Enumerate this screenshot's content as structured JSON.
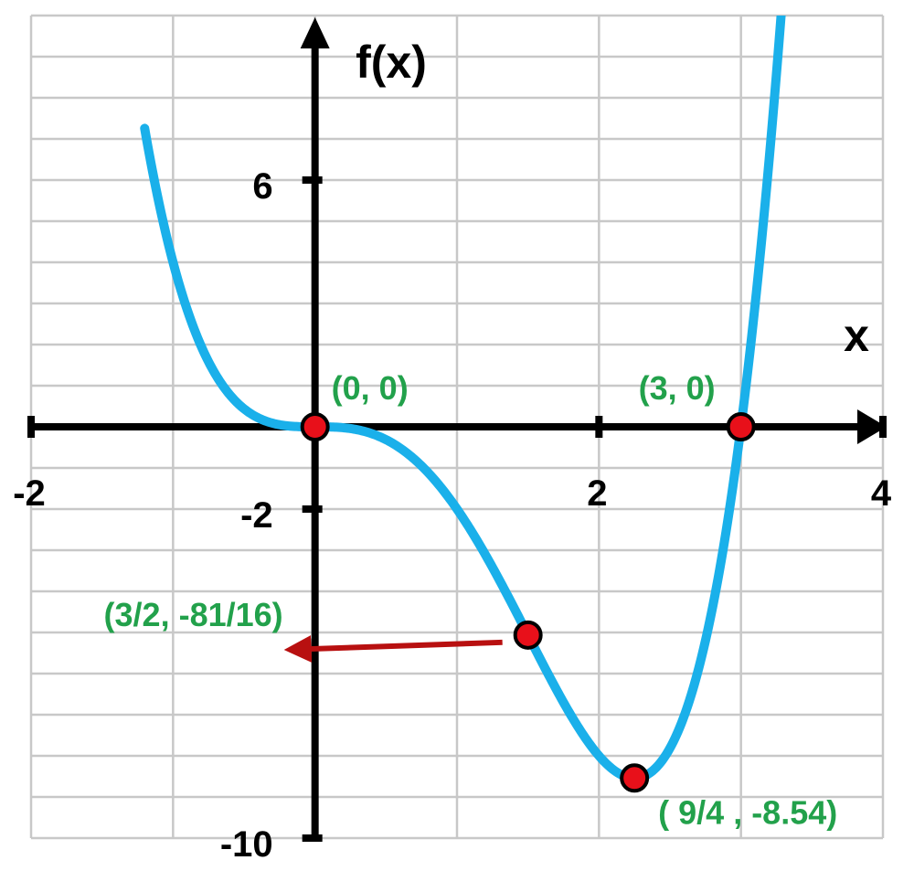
{
  "chart_data": {
    "type": "line",
    "xlabel": "x",
    "ylabel": "f(x)",
    "xlim": [
      -2,
      4
    ],
    "ylim": [
      -10,
      10
    ],
    "x_ticks": [
      {
        "value": -2,
        "label": "-2"
      },
      {
        "value": 2,
        "label": "2"
      },
      {
        "value": 4,
        "label": "4"
      }
    ],
    "y_ticks": [
      {
        "value": 6,
        "label": "6"
      },
      {
        "value": -2,
        "label": "-2"
      },
      {
        "value": -10,
        "label": "-10"
      }
    ],
    "grid": true,
    "grid_step": {
      "x": 1,
      "y": 1
    },
    "series": [
      {
        "function": "x^4 - 3x^3",
        "color": "#1ab0ea",
        "x": [
          -1.2,
          -1.1,
          -1.0,
          -0.9,
          -0.8,
          -0.6,
          -0.4,
          -0.2,
          0,
          0.2,
          0.4,
          0.6,
          0.8,
          1.0,
          1.2,
          1.4,
          1.5,
          1.6,
          1.8,
          2.0,
          2.2,
          2.25,
          2.4,
          2.6,
          2.8,
          2.9,
          3.0,
          3.1,
          3.2,
          3.3
        ],
        "y": [
          7.26,
          5.46,
          4.0,
          2.84,
          1.95,
          0.78,
          0.22,
          0.03,
          0,
          -0.02,
          -0.17,
          -0.52,
          -1.13,
          -2.0,
          -3.11,
          -4.39,
          -5.06,
          -5.73,
          -7.0,
          -8.0,
          -8.48,
          -8.54,
          -8.29,
          -7.03,
          -4.39,
          -2.44,
          0,
          2.97,
          6.55,
          10.78
        ]
      }
    ],
    "points": [
      {
        "x": 0,
        "y": 0,
        "label": "(0, 0)",
        "color": "#e8101a"
      },
      {
        "x": 3,
        "y": 0,
        "label": "(3, 0)",
        "color": "#e8101a"
      },
      {
        "x": 1.5,
        "y": -5.0625,
        "label": "(3/2, -81/16)",
        "color": "#e8101a"
      },
      {
        "x": 2.25,
        "y": -8.54,
        "label": "( 9/4 , -8.54)",
        "color": "#e8101a"
      }
    ],
    "annotation_arrow": {
      "from_point": "(3/2, -81/16)",
      "color": "#b81010"
    },
    "colors": {
      "grid": "#c8c8c8",
      "axes": "#000000",
      "label": "#22a14b"
    }
  }
}
